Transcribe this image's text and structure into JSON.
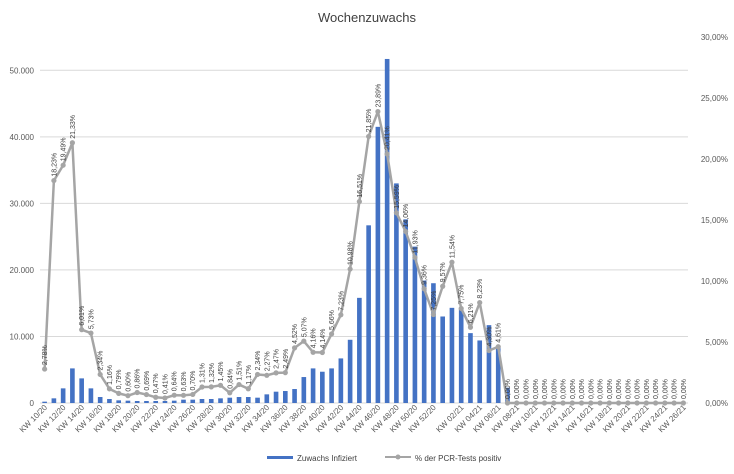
{
  "chart_data": {
    "type": "bar",
    "title": "Wochenzuwachs",
    "xlabel": "",
    "ylabel": "",
    "categories": [
      "KW 10/20",
      "KW 11/20",
      "KW 12/20",
      "KW 13/20",
      "KW 14/20",
      "KW 15/20",
      "KW 16/20",
      "KW 17/20",
      "KW 18/20",
      "KW 19/20",
      "KW 20/20",
      "KW 21/20",
      "KW 22/20",
      "KW 23/20",
      "KW 24/20",
      "KW 25/20",
      "KW 26/20",
      "KW 27/20",
      "KW 28/20",
      "KW 29/20",
      "KW 30/20",
      "KW 31/20",
      "KW 32/20",
      "KW 33/20",
      "KW 34/20",
      "KW 35/20",
      "KW 36/20",
      "KW 37/20",
      "KW 38/20",
      "KW 39/20",
      "KW 40/20",
      "KW 41/20",
      "KW 42/20",
      "KW 43/20",
      "KW 44/20",
      "KW 45/20",
      "KW 46/20",
      "KW 47/20",
      "KW 48/20",
      "KW 49/20",
      "KW 50/20",
      "KW 51/20",
      "KW 52/20",
      "KW 53/20",
      "KW 01/21",
      "KW 02/21",
      "KW 03/21",
      "KW 04/21",
      "KW 05/21",
      "KW 06/21",
      "KW 07/21",
      "KW 08/21",
      "KW 09/21",
      "KW 10/21",
      "KW 11/21",
      "KW 12/21",
      "KW 13/21",
      "KW 14/21",
      "KW 15/21",
      "KW 16/21",
      "KW 17/21",
      "KW 18/21",
      "KW 19/21",
      "KW 20/21",
      "KW 21/21",
      "KW 22/21",
      "KW 23/21",
      "KW 24/21",
      "KW 25/21",
      "KW 26/21"
    ],
    "x_tick_labels": [
      "KW 10/20",
      "KW 12/20",
      "KW 14/20",
      "KW 16/20",
      "KW 18/20",
      "KW 20/20",
      "KW 22/20",
      "KW 24/20",
      "KW 26/20",
      "KW 28/20",
      "KW 30/20",
      "KW 32/20",
      "KW 34/20",
      "KW 36/20",
      "KW 38/20",
      "KW 40/20",
      "KW 42/20",
      "KW 44/20",
      "KW 46/20",
      "KW 48/20",
      "KW 50/20",
      "KW 52/20",
      "KW 02/21",
      "KW 04/21",
      "KW 06/21",
      "KW 08/21",
      "KW 10/21",
      "KW 12/21",
      "KW 14/21",
      "KW 16/21",
      "KW 18/21",
      "KW 20/21",
      "KW 22/21",
      "KW 24/21",
      "KW 26/21"
    ],
    "series": [
      {
        "name": "Zuwachs Infiziert",
        "axis": "left",
        "kind": "bar",
        "color": "#4472C4",
        "values": [
          200,
          700,
          2200,
          5200,
          3700,
          2200,
          900,
          600,
          400,
          350,
          300,
          300,
          300,
          300,
          350,
          500,
          500,
          600,
          600,
          700,
          800,
          900,
          900,
          800,
          1300,
          1700,
          1800,
          2100,
          3900,
          5200,
          4700,
          5200,
          6700,
          9500,
          15800,
          26700,
          41500,
          51700,
          33000,
          27600,
          23500,
          18400,
          18000,
          13000,
          14300,
          14200,
          10500,
          9400,
          11700,
          8500,
          2300,
          0,
          0,
          0,
          0,
          0,
          0,
          0,
          0,
          0,
          0,
          0,
          0,
          0,
          0,
          0,
          0,
          0,
          0,
          0
        ]
      },
      {
        "name": "% der PCR-Tests positiv",
        "axis": "right",
        "kind": "line",
        "color": "#A5A5A5",
        "values": [
          2.78,
          18.23,
          19.49,
          21.33,
          6.01,
          5.73,
          2.34,
          1.16,
          0.79,
          0.6,
          0.86,
          0.69,
          0.47,
          0.41,
          0.64,
          0.63,
          0.7,
          1.31,
          1.32,
          1.45,
          0.84,
          1.51,
          1.17,
          2.34,
          2.27,
          2.47,
          2.49,
          4.52,
          5.07,
          4.16,
          4.14,
          5.66,
          7.23,
          10.98,
          16.51,
          21.85,
          23.89,
          20.41,
          15.59,
          14.06,
          11.93,
          9.36,
          7.25,
          9.57,
          11.54,
          7.75,
          6.21,
          8.23,
          4.3,
          4.61,
          0,
          0,
          0,
          0,
          0,
          0,
          0,
          0,
          0,
          0,
          0,
          0,
          0,
          0,
          0,
          0,
          0,
          0,
          0,
          0
        ],
        "labels": [
          "2,78%",
          "18,23%",
          "19,49%",
          "21,33%",
          "6,01%",
          "5,73%",
          "2,34%",
          "1,16%",
          "0,79%",
          "0,60%",
          "0,86%",
          "0,69%",
          "0,47%",
          "0,41%",
          "0,64%",
          "0,63%",
          "0,70%",
          "1,31%",
          "1,32%",
          "1,45%",
          "0,84%",
          "1,51%",
          "1,17%",
          "2,34%",
          "2,27%",
          "2,47%",
          "2,49%",
          "4,52%",
          "5,07%",
          "4,16%",
          "4,14%",
          "5,66%",
          "7,23%",
          "10,98%",
          "16,51%",
          "21,85%",
          "23,89%",
          "20,41%",
          "15,59%",
          "14,06%",
          "11,93%",
          "9,36%",
          "7,25%",
          "9,57%",
          "11,54%",
          "7,75%",
          "6,21%",
          "8,23%",
          "4,30%",
          "4,61%",
          "0,00%",
          "0,00%",
          "0,00%",
          "0,00%",
          "0,00%",
          "0,00%",
          "0,00%",
          "0,00%",
          "0,00%",
          "0,00%",
          "0,00%",
          "0,00%",
          "0,00%",
          "0,00%",
          "0,00%",
          "0,00%",
          "0,00%",
          "0,00%",
          "0,00%",
          "0,00%"
        ]
      }
    ],
    "y_left": {
      "range": [
        0,
        55000
      ],
      "ticks": [
        0,
        10000,
        20000,
        30000,
        40000,
        50000
      ],
      "tick_labels": [
        "0",
        "10.000",
        "20.000",
        "30.000",
        "40.000",
        "50.000"
      ]
    },
    "y_right": {
      "range": [
        0,
        30
      ],
      "ticks": [
        0,
        5,
        10,
        15,
        20,
        25,
        30
      ],
      "tick_labels": [
        "0,00%",
        "5,00%",
        "10,00%",
        "15,00%",
        "20,00%",
        "25,00%",
        "30,00%"
      ]
    },
    "grid": true,
    "legend_position": "bottom"
  }
}
